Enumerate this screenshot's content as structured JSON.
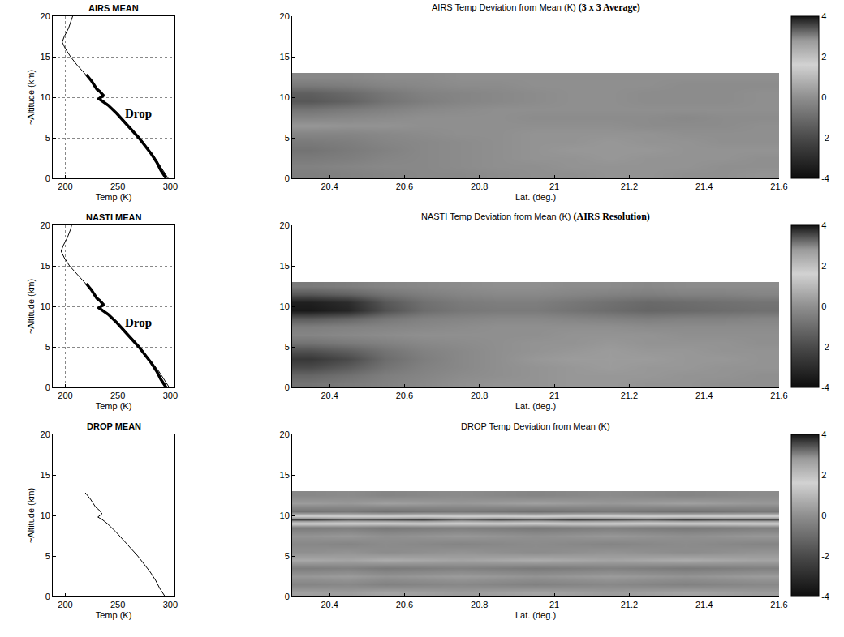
{
  "chart_data": [
    {
      "type": "line",
      "title": "AIRS MEAN",
      "xlabel": "Temp (K)",
      "ylabel": "~Altitude (km)",
      "xlim": [
        188,
        304
      ],
      "xticks": [
        200,
        250,
        300
      ],
      "ylim": [
        0,
        20
      ],
      "yticks": [
        0,
        5,
        10,
        15,
        20
      ],
      "grid": true,
      "series": [
        {
          "color": "#000000",
          "line_style": "thin",
          "x": [
            298,
            293,
            288,
            283,
            277,
            271,
            264,
            257,
            250,
            242,
            237,
            233,
            238,
            234,
            231,
            225,
            218,
            211,
            205,
            200,
            197,
            199,
            203,
            206,
            207
          ],
          "y": [
            0,
            1,
            2,
            3,
            4,
            5,
            6,
            7,
            8,
            9,
            9.5,
            9.8,
            10.2,
            10.7,
            11,
            12,
            13,
            14,
            15,
            16,
            16.8,
            17.5,
            18.5,
            19.5,
            20
          ]
        },
        {
          "name": "Drop",
          "color": "#000000",
          "line_style": "thick",
          "x": [
            296,
            291,
            287,
            282,
            276,
            270,
            263,
            256,
            249,
            241,
            236,
            232,
            236,
            233,
            230,
            225,
            220
          ],
          "y": [
            0,
            1,
            2,
            3,
            4,
            5,
            6,
            7,
            8,
            9,
            9.5,
            9.8,
            10.2,
            10.7,
            11,
            12,
            12.8
          ]
        }
      ]
    },
    {
      "type": "heatmap",
      "title": "AIRS Temp Deviation from Mean (K)",
      "subtitle": "(3 x 3 Average)",
      "xlabel": "Lat. (deg.)",
      "xlim": [
        20.3,
        21.6
      ],
      "xticks": [
        20.4,
        20.6,
        20.8,
        21,
        21.2,
        21.4,
        21.6
      ],
      "ylim": [
        0,
        20
      ],
      "yticks": [
        0,
        5,
        10,
        15,
        20
      ],
      "colorbar_range": [
        -4,
        4
      ],
      "colorbar_ticks": [
        -4,
        -2,
        0,
        2,
        4
      ],
      "x": [
        20.35,
        20.45,
        20.55,
        20.65,
        20.75,
        20.85,
        20.95,
        21.05,
        21.15,
        21.25,
        21.35,
        21.45,
        21.55
      ],
      "y": [
        0.5,
        1.5,
        2.5,
        3.5,
        4.5,
        5.5,
        6.5,
        7.5,
        8.5,
        9.5,
        10.5,
        11.5,
        12.5
      ],
      "cells": [
        [
          -0.5,
          -0.4,
          -0.3,
          -0.2,
          -0.2,
          -0.1,
          0,
          0,
          0.1,
          0.1,
          0,
          0,
          0.1
        ],
        [
          -0.4,
          -0.3,
          -0.2,
          -0.2,
          -0.1,
          0,
          0,
          0.1,
          0.1,
          0.1,
          0.1,
          0,
          0
        ],
        [
          -0.6,
          -0.5,
          -0.3,
          -0.2,
          -0.1,
          0,
          0.1,
          0.1,
          0.2,
          0.1,
          0.1,
          0.1,
          0
        ],
        [
          -0.8,
          -0.6,
          -0.4,
          -0.2,
          -0.1,
          0,
          0.1,
          0.2,
          0.2,
          0.2,
          0.1,
          0.1,
          0.1
        ],
        [
          -0.6,
          -0.5,
          -0.3,
          -0.2,
          -0.1,
          0,
          0.1,
          0.1,
          0.2,
          0.1,
          0.1,
          0,
          0
        ],
        [
          -0.3,
          -0.3,
          -0.2,
          -0.1,
          0,
          0,
          0.1,
          0.1,
          0.1,
          0.1,
          0,
          0,
          0
        ],
        [
          0.2,
          0.1,
          0.1,
          0,
          0,
          0,
          0,
          0,
          0,
          -0.1,
          -0.1,
          -0.1,
          0
        ],
        [
          -0.3,
          -0.2,
          -0.1,
          0,
          0,
          0,
          -0.1,
          -0.1,
          -0.1,
          -0.1,
          -0.2,
          -0.1,
          -0.1
        ],
        [
          -0.8,
          -0.6,
          -0.4,
          -0.2,
          -0.1,
          0,
          0,
          0,
          0,
          0,
          0,
          0,
          0
        ],
        [
          -1.6,
          -1.3,
          -0.8,
          -0.5,
          -0.3,
          -0.2,
          -0.1,
          0,
          0,
          -0.1,
          -0.1,
          -0.1,
          0
        ],
        [
          -1.4,
          -1.1,
          -0.7,
          -0.4,
          -0.3,
          -0.2,
          -0.1,
          0,
          0,
          -0.1,
          -0.1,
          -0.1,
          0
        ],
        [
          -0.6,
          -0.5,
          -0.3,
          -0.2,
          -0.1,
          -0.1,
          0,
          0,
          0,
          0,
          -0.1,
          -0.1,
          -0.1
        ],
        [
          -0.2,
          -0.2,
          -0.1,
          -0.1,
          0,
          0,
          0,
          0,
          0,
          0,
          0,
          0,
          0
        ]
      ]
    },
    {
      "type": "line",
      "title": "NASTI MEAN",
      "xlabel": "Temp (K)",
      "ylabel": "~Altitude (km)",
      "xlim": [
        188,
        304
      ],
      "xticks": [
        200,
        250,
        300
      ],
      "ylim": [
        0,
        20
      ],
      "yticks": [
        0,
        5,
        10,
        15,
        20
      ],
      "grid": true,
      "series": [
        {
          "color": "#000000",
          "line_style": "thin",
          "x": [
            299,
            294,
            289,
            283,
            277,
            271,
            264,
            257,
            250,
            242,
            237,
            233,
            238,
            234,
            231,
            225,
            218,
            211,
            204,
            199,
            196,
            198,
            202,
            205,
            206
          ],
          "y": [
            0,
            1,
            2,
            3,
            4,
            5,
            6,
            7,
            8,
            9,
            9.5,
            9.8,
            10.2,
            10.7,
            11,
            12,
            13,
            14,
            15,
            16,
            16.8,
            17.5,
            18.5,
            19.5,
            20
          ]
        },
        {
          "name": "Drop",
          "color": "#000000",
          "line_style": "thick",
          "x": [
            296,
            291,
            287,
            282,
            276,
            270,
            263,
            256,
            249,
            241,
            236,
            232,
            236,
            233,
            230,
            225,
            220
          ],
          "y": [
            0,
            1,
            2,
            3,
            4,
            5,
            6,
            7,
            8,
            9,
            9.5,
            9.8,
            10.2,
            10.7,
            11,
            12,
            12.8
          ]
        }
      ]
    },
    {
      "type": "heatmap",
      "title": "NASTI Temp Deviation from Mean (K)",
      "subtitle": "(AIRS Resolution)",
      "xlabel": "Lat. (deg.)",
      "xlim": [
        20.3,
        21.6
      ],
      "xticks": [
        20.4,
        20.6,
        20.8,
        21,
        21.2,
        21.4,
        21.6
      ],
      "ylim": [
        0,
        20
      ],
      "yticks": [
        0,
        5,
        10,
        15,
        20
      ],
      "colorbar_range": [
        -4,
        4
      ],
      "colorbar_ticks": [
        -4,
        -2,
        0,
        2,
        4
      ],
      "x": [
        20.35,
        20.45,
        20.55,
        20.65,
        20.75,
        20.85,
        20.95,
        21.05,
        21.15,
        21.25,
        21.35,
        21.45,
        21.55
      ],
      "y": [
        0.5,
        1.5,
        2.5,
        3.5,
        4.5,
        5.5,
        6.5,
        7.5,
        8.5,
        9.5,
        10.5,
        11.5,
        12.5
      ],
      "cells": [
        [
          -0.8,
          -0.6,
          -0.4,
          -0.2,
          0,
          0.1,
          0.1,
          0.2,
          0.2,
          0.1,
          0.1,
          0,
          0
        ],
        [
          -1.2,
          -0.9,
          -0.5,
          -0.3,
          -0.1,
          0,
          0.1,
          0.2,
          0.2,
          0.2,
          0.1,
          0.1,
          0
        ],
        [
          -2.0,
          -1.5,
          -0.8,
          -0.4,
          -0.2,
          0,
          0.1,
          0.2,
          0.3,
          0.2,
          0.2,
          0.1,
          0.1
        ],
        [
          -2.6,
          -2.0,
          -1.0,
          -0.5,
          -0.2,
          0,
          0.2,
          0.3,
          0.3,
          0.3,
          0.2,
          0.2,
          0.1
        ],
        [
          -1.8,
          -1.4,
          -0.8,
          -0.4,
          -0.2,
          0,
          0.1,
          0.2,
          0.3,
          0.2,
          0.2,
          0.1,
          0.1
        ],
        [
          -0.8,
          -0.6,
          -0.4,
          -0.2,
          -0.1,
          0,
          0.1,
          0.1,
          0.2,
          0.1,
          0.1,
          0.1,
          0
        ],
        [
          -0.3,
          -0.2,
          -0.1,
          0,
          0,
          0,
          0,
          0.1,
          0.1,
          0.1,
          0,
          0,
          0
        ],
        [
          -0.5,
          -0.4,
          -0.3,
          -0.2,
          -0.1,
          0,
          0,
          0,
          0,
          -0.1,
          -0.1,
          -0.1,
          -0.1
        ],
        [
          -1.5,
          -1.2,
          -0.7,
          -0.4,
          -0.3,
          -0.2,
          -0.2,
          -0.3,
          -0.4,
          -0.5,
          -0.4,
          -0.4,
          -0.3
        ],
        [
          -3.6,
          -3.2,
          -1.8,
          -1.0,
          -0.7,
          -0.6,
          -0.6,
          -0.8,
          -1.0,
          -1.2,
          -1.1,
          -1.0,
          -0.9
        ],
        [
          -3.4,
          -3.0,
          -1.6,
          -0.9,
          -0.6,
          -0.5,
          -0.5,
          -0.7,
          -0.9,
          -1.1,
          -1.0,
          -0.9,
          -0.8
        ],
        [
          -1.6,
          -1.3,
          -0.8,
          -0.5,
          -0.3,
          -0.2,
          -0.2,
          -0.3,
          -0.4,
          -0.5,
          -0.4,
          -0.4,
          -0.3
        ],
        [
          -0.6,
          -0.5,
          -0.3,
          -0.2,
          -0.1,
          0,
          0,
          -0.1,
          -0.1,
          -0.2,
          -0.1,
          -0.1,
          -0.1
        ]
      ]
    },
    {
      "type": "line",
      "title": "DROP MEAN",
      "xlabel": "Temp (K)",
      "ylabel": "~Altitude (km)",
      "xlim": [
        188,
        304
      ],
      "xticks": [
        200,
        250,
        300
      ],
      "ylim": [
        0,
        20
      ],
      "yticks": [
        0,
        5,
        10,
        15,
        20
      ],
      "grid": false,
      "series": [
        {
          "color": "#000000",
          "line_style": "thin",
          "x": [
            295,
            290,
            286,
            281,
            275,
            269,
            262,
            255,
            248,
            240,
            235,
            231,
            235,
            232,
            229,
            224,
            219
          ],
          "y": [
            0,
            1,
            2,
            3,
            4,
            5,
            6,
            7,
            8,
            9,
            9.5,
            9.8,
            10.2,
            10.7,
            11,
            12,
            12.8
          ]
        }
      ]
    },
    {
      "type": "heatmap",
      "title": "DROP Temp Deviation from Mean (K)",
      "xlabel": "Lat. (deg.)",
      "xlim": [
        20.3,
        21.6
      ],
      "xticks": [
        20.4,
        20.6,
        20.8,
        21,
        21.2,
        21.4,
        21.6
      ],
      "ylim": [
        0,
        20
      ],
      "yticks": [
        0,
        5,
        10,
        15,
        20
      ],
      "colorbar_range": [
        -4,
        4
      ],
      "colorbar_ticks": [
        -4,
        -2,
        0,
        2,
        4
      ],
      "x": [
        20.35,
        20.45,
        20.55,
        20.65,
        20.75,
        20.85,
        20.95,
        21.05,
        21.15,
        21.25,
        21.35,
        21.45,
        21.55
      ],
      "y": [
        0.5,
        1.5,
        2.5,
        3.5,
        4.5,
        5.5,
        6.5,
        7.5,
        8.5,
        9.5,
        10.5,
        11.5,
        12.5
      ],
      "cells": [
        [
          0.4,
          0.3,
          0.5,
          0.4,
          0.3,
          0.4,
          0.5,
          0.4,
          0.3,
          0.4,
          0.5,
          0.4,
          0.3
        ],
        [
          -0.3,
          -0.2,
          -0.4,
          -0.3,
          -0.2,
          -0.3,
          -0.4,
          -0.3,
          -0.2,
          -0.3,
          -0.4,
          -0.3,
          -0.2
        ],
        [
          0.2,
          0.3,
          0.1,
          0.2,
          0.3,
          0.2,
          0.1,
          0.2,
          0.3,
          0.2,
          0.1,
          0.2,
          0.3
        ],
        [
          -0.5,
          -0.4,
          -0.6,
          -0.5,
          -0.4,
          -0.5,
          -0.6,
          -0.5,
          -0.4,
          -0.5,
          -0.6,
          -0.5,
          -0.4
        ],
        [
          0.6,
          0.5,
          0.7,
          0.6,
          0.5,
          0.6,
          0.7,
          0.6,
          0.5,
          0.6,
          0.7,
          0.6,
          0.5
        ],
        [
          0,
          0.1,
          -0.1,
          0,
          0.1,
          0,
          -0.1,
          0,
          0.1,
          0,
          -0.1,
          0,
          0.1
        ],
        [
          -0.2,
          -0.3,
          -0.1,
          -0.2,
          -0.3,
          -0.2,
          -0.1,
          -0.2,
          -0.3,
          -0.2,
          -0.1,
          -0.2,
          -0.3
        ],
        [
          0.1,
          0.2,
          0,
          0.1,
          0.2,
          0.1,
          0,
          0.1,
          0.2,
          0.1,
          0,
          0.1,
          0.2
        ],
        [
          -0.6,
          -0.5,
          -0.7,
          -0.6,
          -0.5,
          -0.6,
          -0.7,
          -0.6,
          -0.5,
          -0.6,
          -0.7,
          -0.6,
          -0.5
        ],
        [
          3.6,
          3.4,
          3.5,
          3.6,
          3.3,
          3.5,
          3.4,
          3.6,
          3.5,
          3.4,
          3.6,
          3.5,
          3.5
        ],
        [
          -0.8,
          -0.7,
          -0.9,
          -0.8,
          -0.7,
          -0.8,
          -0.9,
          -0.8,
          -0.7,
          -0.8,
          -0.9,
          -0.8,
          -0.7
        ],
        [
          0.3,
          0.2,
          0.4,
          0.3,
          0.2,
          0.3,
          0.4,
          0.3,
          0.2,
          0.3,
          0.4,
          0.3,
          0.2
        ],
        [
          -0.2,
          -0.1,
          -0.3,
          -0.2,
          -0.1,
          -0.2,
          -0.3,
          -0.2,
          -0.1,
          -0.2,
          -0.3,
          -0.2,
          -0.1
        ]
      ]
    }
  ]
}
